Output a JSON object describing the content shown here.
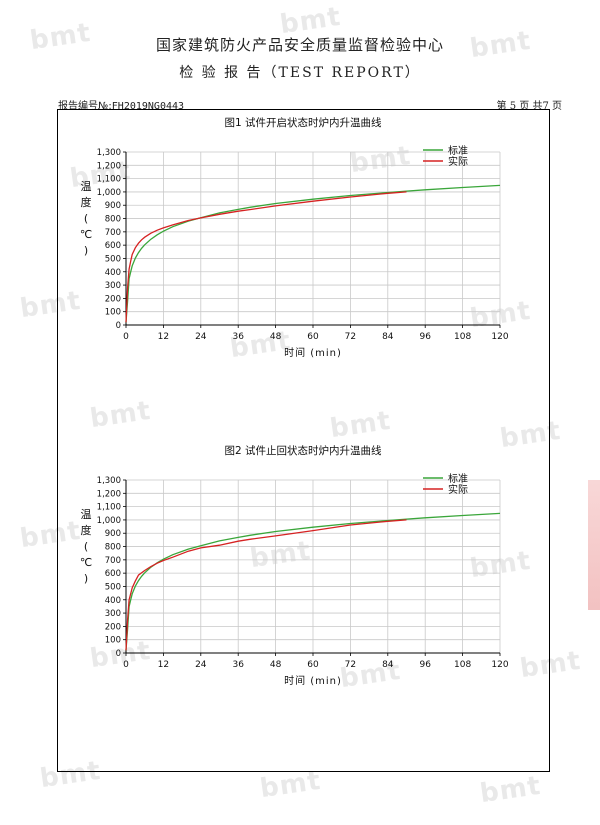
{
  "header": {
    "title": "国家建筑防火产品安全质量监督检验中心",
    "subtitle": "检 验 报 告（TEST REPORT）"
  },
  "report": {
    "number_label": "报告编号№:",
    "number": "FH2019NG0443",
    "page_info": "第 5 页 共7 页"
  },
  "watermark": {
    "text": "bmt"
  },
  "colors": {
    "standard": "#3aa63a",
    "actual": "#d62222",
    "grid": "#c9c9c9",
    "axis": "#000000"
  },
  "chart_data": [
    {
      "type": "line",
      "title": "图1 试件开启状态时炉内升温曲线",
      "xlabel": "时间 (min)",
      "ylabel": "温度(℃)",
      "xlim": [
        0,
        120
      ],
      "ylim": [
        0,
        1300
      ],
      "xticks": [
        0,
        12,
        24,
        36,
        48,
        60,
        72,
        84,
        96,
        108,
        120
      ],
      "yticks": [
        0,
        100,
        200,
        300,
        400,
        500,
        600,
        700,
        800,
        900,
        1000,
        1100,
        1200,
        1300
      ],
      "ytick_labels": [
        "0",
        "100",
        "200",
        "300",
        "400",
        "500",
        "600",
        "700",
        "800",
        "900",
        "1,000",
        "1,100",
        "1,200",
        "1,300"
      ],
      "legend": "top-right",
      "grid": true,
      "series": [
        {
          "name": "标准",
          "color": "#3aa63a",
          "x": [
            0,
            0.5,
            1,
            1.5,
            2,
            3,
            4,
            5,
            6,
            8,
            10,
            12,
            15,
            20,
            24,
            30,
            36,
            40,
            48,
            60,
            72,
            84,
            90,
            96,
            108,
            120
          ],
          "y": [
            20,
            180,
            349,
            400,
            445,
            502,
            544,
            576,
            603,
            645,
            678,
            705,
            739,
            781,
            806,
            842,
            869,
            885,
            913,
            945,
            973,
            996,
            1006,
            1016,
            1033,
            1049
          ]
        },
        {
          "name": "实际",
          "color": "#d62222",
          "x": [
            0,
            0.5,
            1,
            1.5,
            2,
            3,
            4,
            5,
            6,
            8,
            10,
            12,
            15,
            20,
            24,
            30,
            36,
            40,
            48,
            60,
            72,
            84,
            90
          ],
          "y": [
            20,
            280,
            420,
            480,
            530,
            580,
            615,
            640,
            660,
            690,
            712,
            730,
            752,
            785,
            805,
            832,
            855,
            868,
            895,
            930,
            962,
            990,
            1000
          ]
        }
      ]
    },
    {
      "type": "line",
      "title": "图2 试件止回状态时炉内升温曲线",
      "xlabel": "时间 (min)",
      "ylabel": "温度(℃)",
      "xlim": [
        0,
        120
      ],
      "ylim": [
        0,
        1300
      ],
      "xticks": [
        0,
        12,
        24,
        36,
        48,
        60,
        72,
        84,
        96,
        108,
        120
      ],
      "yticks": [
        0,
        100,
        200,
        300,
        400,
        500,
        600,
        700,
        800,
        900,
        1000,
        1100,
        1200,
        1300
      ],
      "ytick_labels": [
        "0",
        "100",
        "200",
        "300",
        "400",
        "500",
        "600",
        "700",
        "800",
        "900",
        "1,000",
        "1,100",
        "1,200",
        "1,300"
      ],
      "legend": "top-right",
      "grid": true,
      "series": [
        {
          "name": "标准",
          "color": "#3aa63a",
          "x": [
            0,
            0.5,
            1,
            1.5,
            2,
            3,
            4,
            5,
            6,
            8,
            10,
            12,
            15,
            20,
            24,
            30,
            36,
            40,
            48,
            60,
            72,
            84,
            90,
            96,
            108,
            120
          ],
          "y": [
            20,
            180,
            349,
            400,
            445,
            502,
            544,
            576,
            603,
            645,
            678,
            705,
            739,
            781,
            806,
            842,
            869,
            885,
            913,
            945,
            973,
            996,
            1006,
            1016,
            1033,
            1049
          ]
        },
        {
          "name": "实际",
          "color": "#d62222",
          "x": [
            0,
            0.5,
            1,
            2,
            3,
            4,
            6,
            8,
            10,
            12,
            15,
            20,
            24,
            30,
            36,
            40,
            48,
            60,
            72,
            84,
            90
          ],
          "y": [
            20,
            250,
            400,
            490,
            540,
            585,
            620,
            650,
            675,
            695,
            720,
            765,
            790,
            810,
            840,
            855,
            880,
            920,
            962,
            990,
            1000
          ]
        }
      ]
    }
  ]
}
